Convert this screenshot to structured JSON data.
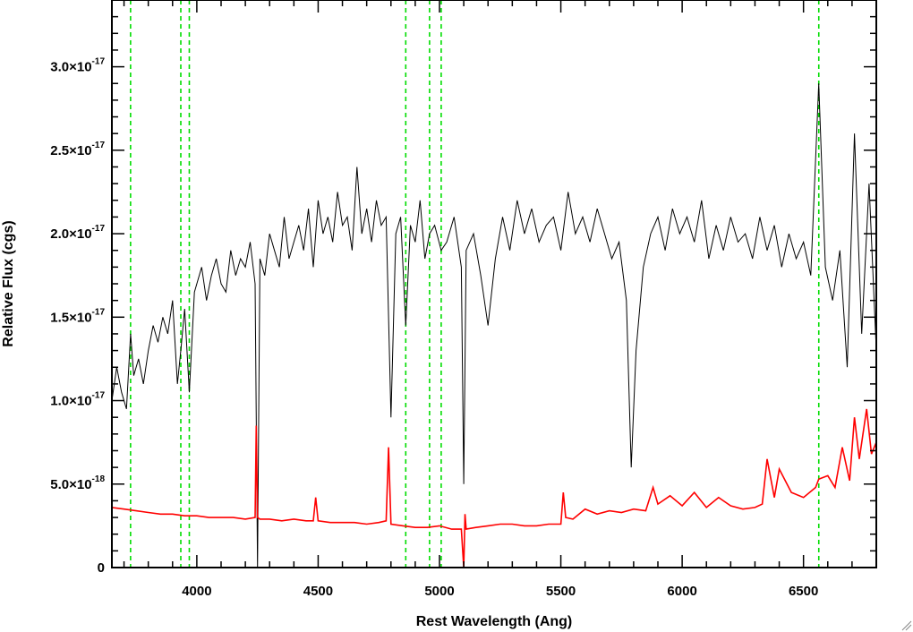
{
  "chart_data": {
    "type": "line",
    "title": "",
    "xlabel": "Rest Wavelength (Ang)",
    "ylabel": "Relative Flux (cgs)",
    "xlim": [
      3650,
      6800
    ],
    "ylim": [
      0,
      3.4e-17
    ],
    "x_ticks": [
      {
        "value": 4000,
        "label": "4000"
      },
      {
        "value": 4500,
        "label": "4500"
      },
      {
        "value": 5000,
        "label": "5000"
      },
      {
        "value": 5500,
        "label": "5500"
      },
      {
        "value": 6000,
        "label": "6000"
      },
      {
        "value": 6500,
        "label": "6500"
      }
    ],
    "y_ticks": [
      {
        "value": 0,
        "mantissa": "0",
        "exponent": ""
      },
      {
        "value": 5e-18,
        "mantissa": "5.0×10",
        "exponent": "-18"
      },
      {
        "value": 1e-17,
        "mantissa": "1.0×10",
        "exponent": "-17"
      },
      {
        "value": 1.5e-17,
        "mantissa": "1.5×10",
        "exponent": "-17"
      },
      {
        "value": 2e-17,
        "mantissa": "2.0×10",
        "exponent": "-17"
      },
      {
        "value": 2.5e-17,
        "mantissa": "2.5×10",
        "exponent": "-17"
      },
      {
        "value": 3e-17,
        "mantissa": "3.0×10",
        "exponent": "-17"
      }
    ],
    "grid": false,
    "legend": "none",
    "reference_lines": [
      3727,
      3934,
      3969,
      4861,
      4959,
      5007,
      6563
    ],
    "series": [
      {
        "color": "#000000",
        "x": [
          3650,
          3670,
          3690,
          3710,
          3727,
          3740,
          3760,
          3780,
          3800,
          3820,
          3840,
          3860,
          3880,
          3900,
          3920,
          3934,
          3950,
          3969,
          3990,
          4000,
          4020,
          4040,
          4060,
          4080,
          4100,
          4120,
          4140,
          4160,
          4180,
          4200,
          4220,
          4240,
          4250,
          4260,
          4280,
          4300,
          4320,
          4340,
          4360,
          4380,
          4400,
          4420,
          4440,
          4460,
          4480,
          4500,
          4520,
          4540,
          4560,
          4580,
          4600,
          4620,
          4640,
          4660,
          4680,
          4700,
          4720,
          4740,
          4760,
          4780,
          4800,
          4820,
          4840,
          4861,
          4880,
          4900,
          4920,
          4940,
          4959,
          4980,
          5007,
          5030,
          5060,
          5090,
          5100,
          5110,
          5140,
          5170,
          5200,
          5230,
          5260,
          5290,
          5320,
          5350,
          5380,
          5410,
          5440,
          5470,
          5500,
          5530,
          5560,
          5590,
          5620,
          5650,
          5680,
          5710,
          5740,
          5770,
          5790,
          5810,
          5840,
          5870,
          5900,
          5930,
          5960,
          5990,
          6020,
          6050,
          6080,
          6110,
          6140,
          6170,
          6200,
          6230,
          6260,
          6290,
          6320,
          6350,
          6380,
          6410,
          6440,
          6470,
          6500,
          6530,
          6563,
          6590,
          6620,
          6650,
          6680,
          6710,
          6740,
          6770,
          6800
        ],
        "y": [
          1e-17,
          1.2e-17,
          1.05e-17,
          9.5e-18,
          1.4e-17,
          1.15e-17,
          1.25e-17,
          1.1e-17,
          1.3e-17,
          1.45e-17,
          1.35e-17,
          1.5e-17,
          1.4e-17,
          1.6e-17,
          1.1e-17,
          1.3e-17,
          1.55e-17,
          1.05e-17,
          1.65e-17,
          1.7e-17,
          1.8e-17,
          1.6e-17,
          1.75e-17,
          1.85e-17,
          1.7e-17,
          1.65e-17,
          1.9e-17,
          1.75e-17,
          1.85e-17,
          1.8e-17,
          1.95e-17,
          1.7e-17,
          0.0,
          1.85e-17,
          1.75e-17,
          2e-17,
          1.9e-17,
          1.8e-17,
          2.1e-17,
          1.85e-17,
          1.95e-17,
          2.05e-17,
          1.9e-17,
          2.15e-17,
          1.8e-17,
          2.2e-17,
          2e-17,
          2.1e-17,
          1.95e-17,
          2.25e-17,
          2.05e-17,
          2.1e-17,
          1.9e-17,
          2.4e-17,
          2e-17,
          2.15e-17,
          1.95e-17,
          2.2e-17,
          2.05e-17,
          2.1e-17,
          9e-18,
          2e-17,
          2.1e-17,
          1.45e-17,
          2.05e-17,
          1.95e-17,
          2.2e-17,
          1.85e-17,
          2e-17,
          2.05e-17,
          1.9e-17,
          1.95e-17,
          2.1e-17,
          1.8e-17,
          5e-18,
          1.9e-17,
          2e-17,
          1.75e-17,
          1.45e-17,
          1.85e-17,
          2.1e-17,
          1.9e-17,
          2.2e-17,
          2e-17,
          2.15e-17,
          1.95e-17,
          2.05e-17,
          2.1e-17,
          1.9e-17,
          2.25e-17,
          2e-17,
          2.1e-17,
          1.95e-17,
          2.15e-17,
          2e-17,
          1.85e-17,
          1.95e-17,
          1.6e-17,
          6e-18,
          1.3e-17,
          1.8e-17,
          2e-17,
          2.1e-17,
          1.9e-17,
          2.15e-17,
          2e-17,
          2.1e-17,
          1.95e-17,
          2.2e-17,
          1.85e-17,
          2.05e-17,
          1.9e-17,
          2.1e-17,
          1.95e-17,
          2e-17,
          1.85e-17,
          2.1e-17,
          1.9e-17,
          2.05e-17,
          1.8e-17,
          2e-17,
          1.85e-17,
          1.95e-17,
          1.75e-17,
          2.9e-17,
          1.8e-17,
          1.6e-17,
          1.9e-17,
          1.2e-17,
          2.6e-17,
          1.4e-17,
          2.3e-17,
          1.3e-17
        ]
      },
      {
        "color": "#ff0000",
        "x": [
          3650,
          3700,
          3750,
          3800,
          3850,
          3900,
          3950,
          4000,
          4050,
          4100,
          4150,
          4200,
          4240,
          4245,
          4250,
          4260,
          4300,
          4350,
          4400,
          4450,
          4480,
          4490,
          4500,
          4550,
          4600,
          4650,
          4700,
          4750,
          4780,
          4790,
          4800,
          4850,
          4900,
          4950,
          5000,
          5050,
          5090,
          5100,
          5105,
          5110,
          5150,
          5200,
          5250,
          5300,
          5350,
          5400,
          5450,
          5500,
          5510,
          5520,
          5550,
          5600,
          5650,
          5700,
          5750,
          5800,
          5850,
          5880,
          5900,
          5950,
          6000,
          6050,
          6100,
          6150,
          6200,
          6250,
          6300,
          6330,
          6350,
          6380,
          6400,
          6450,
          6500,
          6550,
          6563,
          6600,
          6630,
          6660,
          6690,
          6710,
          6730,
          6760,
          6780,
          6800
        ],
        "y": [
          3.6e-18,
          3.5e-18,
          3.4e-18,
          3.3e-18,
          3.2e-18,
          3.2e-18,
          3.1e-18,
          3.1e-18,
          3e-18,
          3e-18,
          3e-18,
          2.9e-18,
          3e-18,
          8.5e-18,
          3e-18,
          2.9e-18,
          2.9e-18,
          2.8e-18,
          2.9e-18,
          2.8e-18,
          2.8e-18,
          4.2e-18,
          2.8e-18,
          2.7e-18,
          2.7e-18,
          2.7e-18,
          2.6e-18,
          2.7e-18,
          2.8e-18,
          7.2e-18,
          2.6e-18,
          2.5e-18,
          2.4e-18,
          2.4e-18,
          2.5e-18,
          2.3e-18,
          2.3e-18,
          0.0,
          3.2e-18,
          2.3e-18,
          2.4e-18,
          2.5e-18,
          2.6e-18,
          2.6e-18,
          2.5e-18,
          2.5e-18,
          2.6e-18,
          2.6e-18,
          4.5e-18,
          3e-18,
          2.9e-18,
          3.5e-18,
          3.2e-18,
          3.4e-18,
          3.3e-18,
          3.5e-18,
          3.4e-18,
          4.8e-18,
          3.8e-18,
          4.3e-18,
          3.7e-18,
          4.5e-18,
          3.6e-18,
          4.2e-18,
          3.7e-18,
          3.5e-18,
          3.6e-18,
          3.8e-18,
          6.5e-18,
          4.2e-18,
          5.9e-18,
          4.5e-18,
          4.2e-18,
          4.8e-18,
          5.3e-18,
          5.5e-18,
          4.8e-18,
          7.2e-18,
          5.2e-18,
          9e-18,
          6.5e-18,
          9.5e-18,
          6.8e-18,
          7.5e-18
        ]
      }
    ]
  }
}
